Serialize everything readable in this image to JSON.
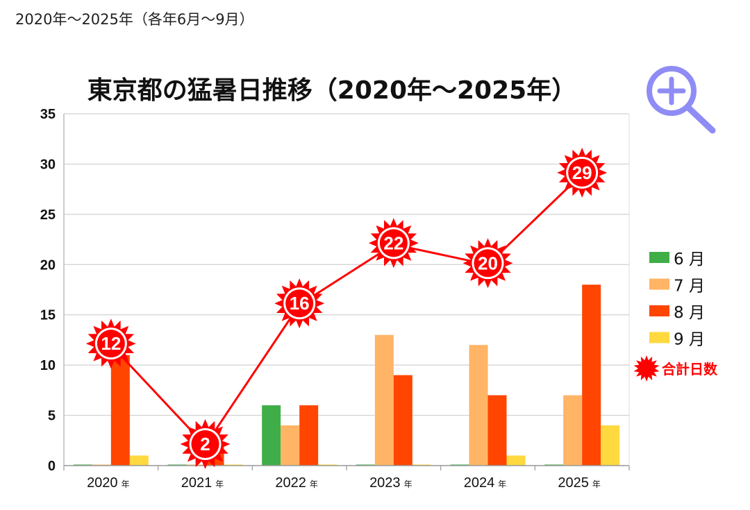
{
  "page": {
    "caption": "2020年～2025年（各年6月～9月）"
  },
  "icons": {
    "zoom": "zoom-in-icon"
  },
  "colors": {
    "june": "#3fae49",
    "july": "#ffb466",
    "august": "#ff4500",
    "september": "#ffd93f",
    "total": "#ff0000",
    "zoom": "#8f8cf5",
    "grid": "#d0d0d0"
  },
  "chart_data": {
    "type": "bar",
    "title": "東京都の猛暑日推移（2020年～2025年）",
    "categories": [
      "2020",
      "2021",
      "2022",
      "2023",
      "2024",
      "2025"
    ],
    "category_suffix": "年",
    "xlabel": "",
    "ylabel": "",
    "ylim": [
      0,
      35
    ],
    "yticks": [
      0,
      5,
      10,
      15,
      20,
      25,
      30,
      35
    ],
    "grid": true,
    "legend_position": "right",
    "series": [
      {
        "name": "6 月",
        "key": "june",
        "values": [
          0,
          0,
          6,
          0,
          0,
          0
        ]
      },
      {
        "name": "7 月",
        "key": "july",
        "values": [
          0,
          0,
          4,
          13,
          12,
          7
        ]
      },
      {
        "name": "8 月",
        "key": "august",
        "values": [
          11,
          2,
          6,
          9,
          7,
          18
        ]
      },
      {
        "name": "9 月",
        "key": "september",
        "values": [
          1,
          0,
          0,
          0,
          1,
          4
        ]
      }
    ],
    "total": {
      "name": "合計日数",
      "type": "line",
      "values": [
        12,
        2,
        16,
        22,
        20,
        29
      ],
      "labels": [
        "12",
        "2",
        "16",
        "22",
        "20",
        "29"
      ]
    }
  }
}
